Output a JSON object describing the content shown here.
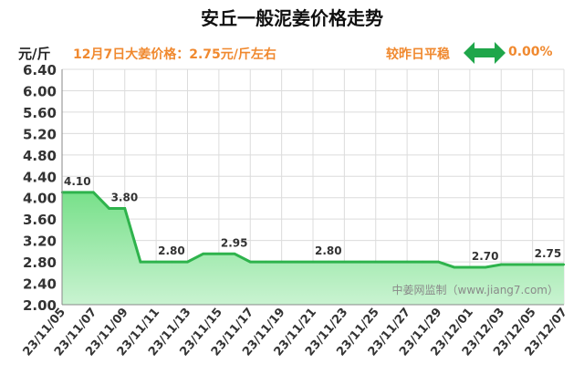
{
  "header": {
    "title": "安丘一般泥姜价格走势",
    "unit": "元/斤",
    "price_text": "12月7日大姜价格：2.75元/斤左右",
    "compare_text": "较昨日平稳",
    "change_text": "0.00%",
    "trend_icon": "left-right-arrow-icon"
  },
  "watermark": "中姜网监制（www.jiang7.com）",
  "colors": {
    "fill": "#78e08a",
    "fill_light": "#c9f3d1",
    "line": "#2eb34c",
    "accent": "#f0892f",
    "arrow": "#1fa64a"
  },
  "chart_data": {
    "type": "area",
    "title": "安丘一般泥姜价格走势",
    "ylabel": "元/斤",
    "ylim": [
      2.0,
      6.4
    ],
    "yticks": [
      "2.00",
      "2.40",
      "2.80",
      "3.20",
      "3.60",
      "4.00",
      "4.40",
      "4.80",
      "5.20",
      "5.60",
      "6.00",
      "6.40"
    ],
    "x": [
      "23/11/05",
      "23/11/06",
      "23/11/07",
      "23/11/08",
      "23/11/09",
      "23/11/10",
      "23/11/11",
      "23/11/12",
      "23/11/13",
      "23/11/14",
      "23/11/15",
      "23/11/16",
      "23/11/17",
      "23/11/18",
      "23/11/19",
      "23/11/20",
      "23/11/21",
      "23/11/22",
      "23/11/23",
      "23/11/24",
      "23/11/25",
      "23/11/26",
      "23/11/27",
      "23/11/28",
      "23/11/29",
      "23/11/30",
      "23/12/01",
      "23/12/02",
      "23/12/03",
      "23/12/04",
      "23/12/05",
      "23/12/06",
      "23/12/07"
    ],
    "xtick_labels": [
      "23/11/05",
      "23/11/07",
      "23/11/09",
      "23/11/11",
      "23/11/13",
      "23/11/15",
      "23/11/17",
      "23/11/19",
      "23/11/21",
      "23/11/23",
      "23/11/25",
      "23/11/27",
      "23/11/29",
      "23/12/01",
      "23/12/03",
      "23/12/05",
      "23/12/07"
    ],
    "values": [
      4.1,
      4.1,
      4.1,
      3.8,
      3.8,
      2.8,
      2.8,
      2.8,
      2.8,
      2.95,
      2.95,
      2.95,
      2.8,
      2.8,
      2.8,
      2.8,
      2.8,
      2.8,
      2.8,
      2.8,
      2.8,
      2.8,
      2.8,
      2.8,
      2.8,
      2.7,
      2.7,
      2.7,
      2.75,
      2.75,
      2.75,
      2.75,
      2.75
    ],
    "data_labels": [
      {
        "index": 0,
        "text": "4.10"
      },
      {
        "index": 3,
        "text": "3.80"
      },
      {
        "index": 6,
        "text": "2.80"
      },
      {
        "index": 10,
        "text": "2.95"
      },
      {
        "index": 16,
        "text": "2.80"
      },
      {
        "index": 26,
        "text": "2.70"
      },
      {
        "index": 30,
        "text": "2.75"
      }
    ],
    "grid": true
  }
}
